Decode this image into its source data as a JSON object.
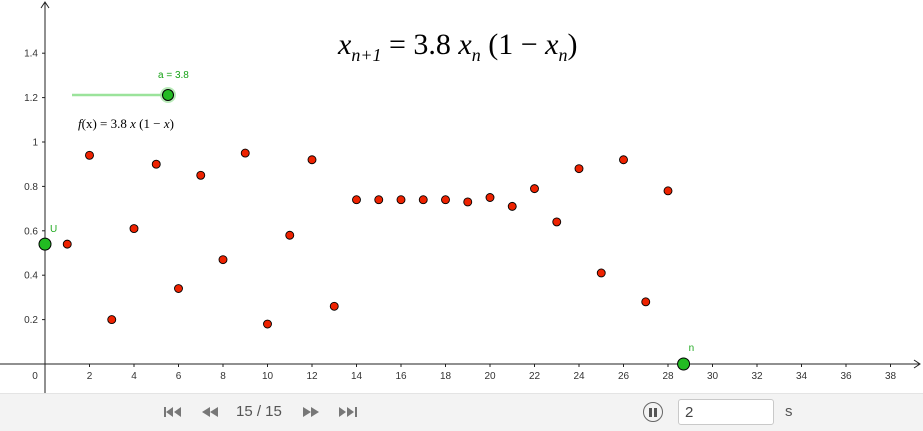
{
  "formula": {
    "main_lhs_base": "x",
    "main_lhs_sub": "n+1",
    "main_eq": "= 3.8",
    "main_rhs_base": "x",
    "main_rhs_sub": "n",
    "main_paren_open": "(1 − ",
    "main_paren_base": "x",
    "main_paren_sub": "n",
    "main_paren_close": ")",
    "f_text_name": "f",
    "f_text_arg": "(x) = 3.8 ",
    "f_text_x": "x",
    "f_text_tail": " (1 − ",
    "f_text_x2": "x",
    "f_text_close": ")"
  },
  "slider": {
    "label": "a = 3.8",
    "value": 3.8,
    "fraction": 1.0,
    "color": "#16a216",
    "track_color": "#9be39b"
  },
  "points": {
    "U_label": "U",
    "U_y": 0.54,
    "n_label": "n",
    "n_x": 28.7,
    "color": "#22bb22"
  },
  "chart_data": {
    "type": "scatter",
    "title": "",
    "xlabel": "",
    "ylabel": "",
    "xlim": [
      -2,
      39.5
    ],
    "ylim": [
      -0.03,
      1.62
    ],
    "x_ticks": [
      0,
      2,
      4,
      6,
      8,
      10,
      12,
      14,
      16,
      18,
      20,
      22,
      24,
      26,
      28,
      30,
      32,
      34,
      36,
      38
    ],
    "y_ticks": [
      0.2,
      0.4,
      0.6,
      0.8,
      1,
      1.2,
      1.4
    ],
    "point_color": "#ee2200",
    "series": [
      {
        "x": [
          1,
          2,
          3,
          4,
          5,
          6,
          7,
          8,
          9,
          10,
          11,
          12,
          13,
          14,
          15,
          16,
          17,
          18,
          19,
          20,
          21,
          22,
          23,
          24,
          25,
          26,
          27,
          28
        ],
        "y": [
          0.54,
          0.94,
          0.2,
          0.61,
          0.9,
          0.34,
          0.85,
          0.47,
          0.95,
          0.18,
          0.58,
          0.92,
          0.26,
          0.74,
          0.74,
          0.74,
          0.74,
          0.74,
          0.73,
          0.75,
          0.71,
          0.79,
          0.64,
          0.88,
          0.41,
          0.92,
          0.28,
          0.78
        ]
      }
    ]
  },
  "toolbar": {
    "first_icon": "skip-to-start-icon",
    "prev_icon": "rewind-icon",
    "counter": "15 / 15",
    "next_icon": "fast-forward-icon",
    "last_icon": "skip-to-end-icon",
    "pause_icon": "pause-icon",
    "speed_value": "2",
    "speed_unit": "s"
  }
}
